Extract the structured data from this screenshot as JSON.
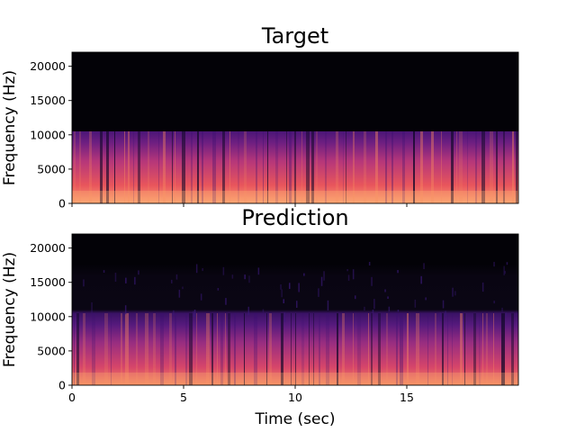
{
  "chart_data": [
    {
      "type": "heatmap",
      "subtype": "spectrogram",
      "title": "Target",
      "ylabel": "Frequency (Hz)",
      "xlabel": "",
      "xlim": [
        0,
        20
      ],
      "ylim": [
        0,
        22050
      ],
      "yticks": [
        0,
        5000,
        10000,
        15000,
        20000
      ],
      "ytick_labels": [
        "0",
        "5000",
        "10000",
        "15000",
        "20000"
      ],
      "xticks": [
        0,
        5,
        10,
        15
      ],
      "xtick_labels": [],
      "colormap": "magma",
      "energy_cutoff_hz": 10500,
      "grid": false
    },
    {
      "type": "heatmap",
      "subtype": "spectrogram",
      "title": "Prediction",
      "ylabel": "Frequency (Hz)",
      "xlabel": "Time (sec)",
      "xlim": [
        0,
        20
      ],
      "ylim": [
        0,
        22050
      ],
      "yticks": [
        0,
        5000,
        10000,
        15000,
        20000
      ],
      "ytick_labels": [
        "0",
        "5000",
        "10000",
        "15000",
        "20000"
      ],
      "xticks": [
        0,
        5,
        10,
        15
      ],
      "xtick_labels": [
        "0",
        "5",
        "10",
        "15"
      ],
      "colormap": "magma",
      "energy_cutoff_hz": 10500,
      "grid": false
    }
  ],
  "colors": {
    "background": "#030207",
    "magma_dark": "#2b115e",
    "magma_mid": "#8c2981",
    "magma_hot": "#f1605d",
    "magma_bright": "#fcae74"
  }
}
